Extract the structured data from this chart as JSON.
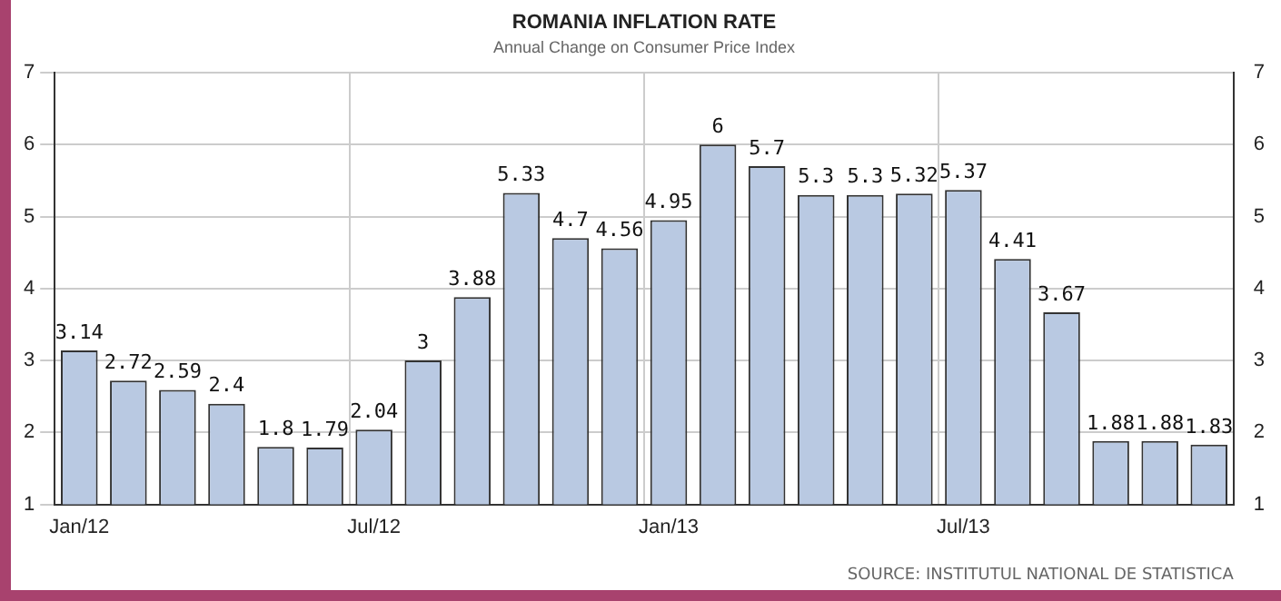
{
  "chart_data": {
    "type": "bar",
    "title": "ROMANIA INFLATION RATE",
    "subtitle": "Annual Change on Consumer Price Index",
    "categories": [
      "Jan/12",
      null,
      null,
      null,
      null,
      null,
      "Jul/12",
      null,
      null,
      null,
      null,
      null,
      "Jan/13",
      null,
      null,
      null,
      null,
      null,
      "Jul/13",
      null,
      null,
      null,
      null,
      null
    ],
    "values": [
      3.14,
      2.72,
      2.59,
      2.4,
      1.8,
      1.79,
      2.04,
      3,
      3.88,
      5.33,
      4.7,
      4.56,
      4.95,
      6,
      5.7,
      5.3,
      5.3,
      5.32,
      5.37,
      4.41,
      3.67,
      1.88,
      1.88,
      1.83
    ],
    "color": "#b9c9e2",
    "ylim": [
      1,
      7
    ],
    "yticks": [
      1,
      2,
      3,
      4,
      5,
      6,
      7
    ],
    "y2lim": [
      1,
      7
    ],
    "y2ticks": [
      1,
      2,
      3,
      4,
      5,
      6,
      7
    ],
    "grid": true,
    "data_labels": true,
    "annotations": [
      "SOURCE: INSTITUTUL NATIONAL DE STATISTICA"
    ]
  }
}
